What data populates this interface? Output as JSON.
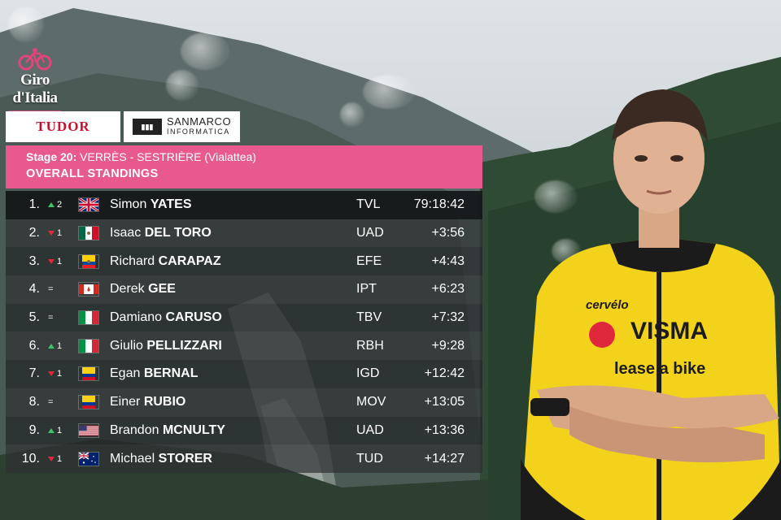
{
  "brand": {
    "logo_text": "Giro d'Italia",
    "accent": "#e85a8d"
  },
  "sponsors": {
    "tudor": "TUDOR",
    "sanmarco_name": "SANMARCO",
    "sanmarco_sub": "INFORMATICA"
  },
  "header": {
    "stage_prefix": "Stage 20:",
    "stage_name": "VERRÈS - SESTRIÈRE (Vialattea)",
    "title": "OVERALL STANDINGS"
  },
  "standings": [
    {
      "rank": "1.",
      "move": "up",
      "move_n": "2",
      "flag": "gb",
      "first": "Simon",
      "last": "YATES",
      "team": "TVL",
      "time": "79:18:42"
    },
    {
      "rank": "2.",
      "move": "down",
      "move_n": "1",
      "flag": "mx",
      "first": "Isaac",
      "last": "DEL TORO",
      "team": "UAD",
      "time": "+3:56"
    },
    {
      "rank": "3.",
      "move": "down",
      "move_n": "1",
      "flag": "ec",
      "first": "Richard",
      "last": "CARAPAZ",
      "team": "EFE",
      "time": "+4:43"
    },
    {
      "rank": "4.",
      "move": "same",
      "move_n": "=",
      "flag": "ca",
      "first": "Derek",
      "last": "GEE",
      "team": "IPT",
      "time": "+6:23"
    },
    {
      "rank": "5.",
      "move": "same",
      "move_n": "=",
      "flag": "it",
      "first": "Damiano",
      "last": "CARUSO",
      "team": "TBV",
      "time": "+7:32"
    },
    {
      "rank": "6.",
      "move": "up",
      "move_n": "1",
      "flag": "it",
      "first": "Giulio",
      "last": "PELLIZZARI",
      "team": "RBH",
      "time": "+9:28"
    },
    {
      "rank": "7.",
      "move": "down",
      "move_n": "1",
      "flag": "co",
      "first": "Egan",
      "last": "BERNAL",
      "team": "IGD",
      "time": "+12:42"
    },
    {
      "rank": "8.",
      "move": "same",
      "move_n": "=",
      "flag": "co",
      "first": "Einer",
      "last": "RUBIO",
      "team": "MOV",
      "time": "+13:05"
    },
    {
      "rank": "9.",
      "move": "up",
      "move_n": "1",
      "flag": "us",
      "first": "Brandon",
      "last": "MCNULTY",
      "team": "UAD",
      "time": "+13:36"
    },
    {
      "rank": "10.",
      "move": "down",
      "move_n": "1",
      "flag": "au",
      "first": "Michael",
      "last": "STORER",
      "team": "TUD",
      "time": "+14:27"
    }
  ],
  "jersey": {
    "sponsor_main": "VISMA",
    "sponsor_sub": "lease a bike",
    "brand": "cervélo",
    "color": "#f2d21b"
  }
}
